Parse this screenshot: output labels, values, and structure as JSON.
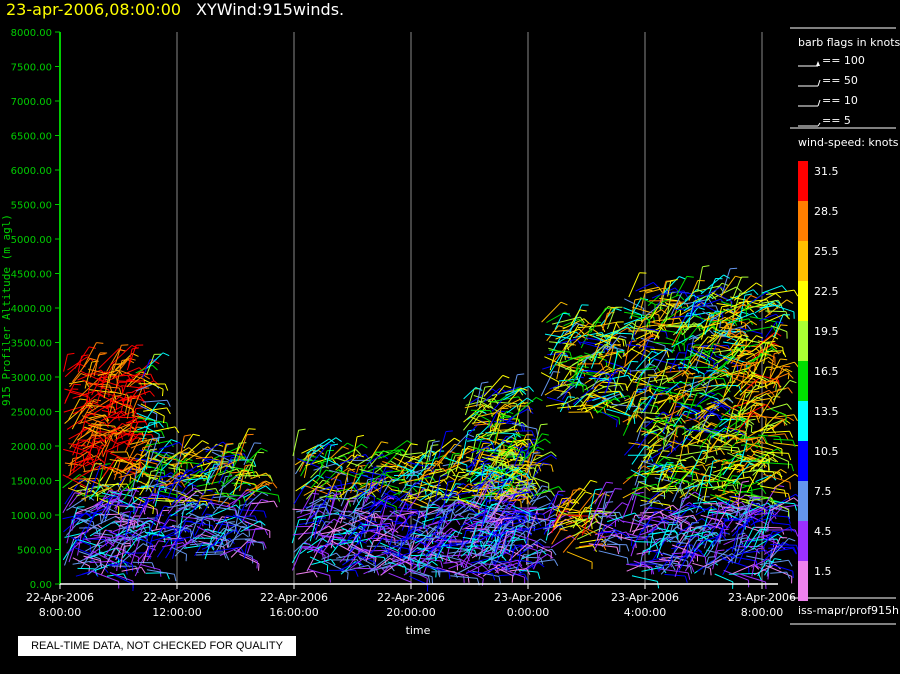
{
  "header": {
    "date_time": "23-apr-2006,08:00:00",
    "product": "XYWind:915winds."
  },
  "legend": {
    "barb_title": "barb flags in knots",
    "barb_items": [
      {
        "label": "== 100"
      },
      {
        "label": "== 50"
      },
      {
        "label": "== 10"
      },
      {
        "label": "== 5"
      }
    ],
    "speed_title": "wind-speed: knots",
    "speed_scale": [
      {
        "label": "31.5",
        "color": "#ff0000"
      },
      {
        "label": "28.5",
        "color": "#ff7f00"
      },
      {
        "label": "25.5",
        "color": "#ffbf00"
      },
      {
        "label": "22.5",
        "color": "#ffff00"
      },
      {
        "label": "19.5",
        "color": "#aaff33"
      },
      {
        "label": "16.5",
        "color": "#00e000"
      },
      {
        "label": "13.5",
        "color": "#00ffff"
      },
      {
        "label": "10.5",
        "color": "#0000ff"
      },
      {
        "label": "7.5",
        "color": "#6495ed"
      },
      {
        "label": "4.5",
        "color": "#9b30ff"
      },
      {
        "label": "1.5",
        "color": "#ee82ee"
      }
    ]
  },
  "footer": {
    "quality_note": "REAL-TIME DATA, NOT CHECKED FOR QUALITY",
    "source": "iss-mapr/prof915h"
  },
  "chart_data": {
    "type": "scatter",
    "title": "",
    "xlabel": "time",
    "ylabel": "915 Profiler Altitude (m agl)",
    "ylim": [
      0,
      8000
    ],
    "yticks": [
      "0.00",
      "500.00",
      "1000.00",
      "1500.00",
      "2000.00",
      "2500.00",
      "3000.00",
      "3500.00",
      "4000.00",
      "4500.00",
      "5000.00",
      "5500.00",
      "6000.00",
      "6500.00",
      "7000.00",
      "7500.00",
      "8000.00"
    ],
    "xticks": [
      {
        "date": "22-Apr-2006",
        "time": "8:00:00"
      },
      {
        "date": "22-Apr-2006",
        "time": "12:00:00"
      },
      {
        "date": "22-Apr-2006",
        "time": "16:00:00"
      },
      {
        "date": "22-Apr-2006",
        "time": "20:00:00"
      },
      {
        "date": "23-Apr-2006",
        "time": "0:00:00"
      },
      {
        "date": "23-Apr-2006",
        "time": "4:00:00"
      },
      {
        "date": "23-Apr-2006",
        "time": "8:00:00"
      }
    ],
    "xlim_hours": [
      0,
      24.5
    ],
    "grid": "vertical",
    "legend_position": "right",
    "barb_density": 0.5,
    "segments": [
      {
        "t0": 0.0,
        "t1": 3.0,
        "top": 3200,
        "bottom": 150
      },
      {
        "t0": 3.0,
        "t1": 6.5,
        "top": 2000,
        "bottom": 400
      },
      {
        "t0": 8.0,
        "t1": 16.2,
        "top": 1900,
        "bottom": 150
      },
      {
        "t0": 13.8,
        "t1": 15.5,
        "top": 2800,
        "bottom": 200
      },
      {
        "t0": 16.5,
        "t1": 19.0,
        "top": 3800,
        "bottom": 2500
      },
      {
        "t0": 16.5,
        "t1": 19.0,
        "top": 1200,
        "bottom": 500
      },
      {
        "t0": 19.3,
        "t1": 24.5,
        "top": 4200,
        "bottom": 150
      }
    ]
  }
}
